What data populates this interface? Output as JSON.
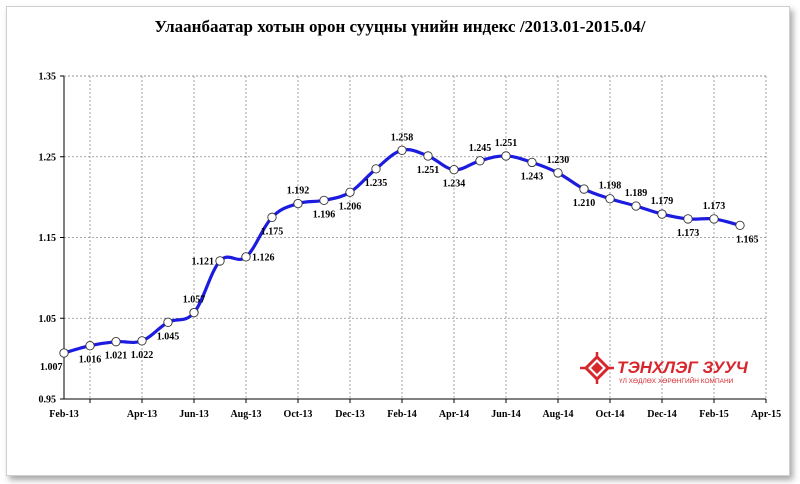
{
  "chart_data": {
    "type": "line",
    "title": "Улаанбаатар хотын орон сууцны үнийн индекс /2013.01-2015.04/",
    "xlabel": "",
    "ylabel": "",
    "ylim": [
      0.95,
      1.35
    ],
    "yticks": [
      "0.95",
      "1.05",
      "1.15",
      "1.25",
      "1.35"
    ],
    "ytick_values": [
      0.95,
      1.05,
      1.15,
      1.25,
      1.35
    ],
    "x_tick_labels": [
      "Feb-13",
      "Apr-13",
      "Jun-13",
      "Aug-13",
      "Oct-13",
      "Dec-13",
      "Feb-14",
      "Apr-14",
      "Jun-14",
      "Aug-14",
      "Oct-14",
      "Dec-14",
      "Feb-15",
      "Apr-15"
    ],
    "grid": true,
    "series_color": "#1c1ce0",
    "points": [
      {
        "x": "Jan-13",
        "y": 1.007,
        "label": "1.007",
        "pos": "below"
      },
      {
        "x": "Feb-13",
        "y": 1.016,
        "label": "1.016",
        "pos": "below"
      },
      {
        "x": "Mar-13",
        "y": 1.021,
        "label": "1.021",
        "pos": "below"
      },
      {
        "x": "Apr-13",
        "y": 1.022,
        "label": "1.022",
        "pos": "below"
      },
      {
        "x": "May-13",
        "y": 1.045,
        "label": "1.045",
        "pos": "below"
      },
      {
        "x": "Jun-13",
        "y": 1.057,
        "label": "1.057",
        "pos": "above"
      },
      {
        "x": "Jul-13",
        "y": 1.121,
        "label": "1.121",
        "pos": "left"
      },
      {
        "x": "Aug-13",
        "y": 1.126,
        "label": "1.126",
        "pos": "right"
      },
      {
        "x": "Sep-13",
        "y": 1.175,
        "label": "1.175",
        "pos": "below"
      },
      {
        "x": "Oct-13",
        "y": 1.192,
        "label": "1.192",
        "pos": "above"
      },
      {
        "x": "Nov-13",
        "y": 1.196,
        "label": "1.196",
        "pos": "below"
      },
      {
        "x": "Dec-13",
        "y": 1.206,
        "label": "1.206",
        "pos": "below"
      },
      {
        "x": "Jan-14",
        "y": 1.235,
        "label": "1.235",
        "pos": "below"
      },
      {
        "x": "Feb-14",
        "y": 1.258,
        "label": "1.258",
        "pos": "above"
      },
      {
        "x": "Mar-14",
        "y": 1.251,
        "label": "1.251",
        "pos": "below"
      },
      {
        "x": "Apr-14",
        "y": 1.234,
        "label": "1.234",
        "pos": "below"
      },
      {
        "x": "May-14",
        "y": 1.245,
        "label": "1.245",
        "pos": "above"
      },
      {
        "x": "Jun-14",
        "y": 1.251,
        "label": "1.251",
        "pos": "above"
      },
      {
        "x": "Jul-14",
        "y": 1.243,
        "label": "1.243",
        "pos": "below"
      },
      {
        "x": "Aug-14",
        "y": 1.23,
        "label": "1.230",
        "pos": "above"
      },
      {
        "x": "Sep-14",
        "y": 1.21,
        "label": "1.210",
        "pos": "below"
      },
      {
        "x": "Oct-14",
        "y": 1.198,
        "label": "1.198",
        "pos": "above"
      },
      {
        "x": "Nov-14",
        "y": 1.189,
        "label": "1.189",
        "pos": "above"
      },
      {
        "x": "Dec-14",
        "y": 1.179,
        "label": "1.179",
        "pos": "above"
      },
      {
        "x": "Jan-15",
        "y": 1.173,
        "label": "1.173",
        "pos": "below"
      },
      {
        "x": "Feb-15",
        "y": 1.173,
        "label": "1.173",
        "pos": "above"
      },
      {
        "x": "Mar-15",
        "y": 1.165,
        "label": "1.165",
        "pos": "below"
      }
    ]
  },
  "logo": {
    "name": "ТЭНХЛЭГ ЗУУЧ",
    "subtitle": "ҮЛ ХӨДЛӨХ ХӨРӨНГИЙН КОМПАНИ",
    "color": "#d7262c"
  }
}
